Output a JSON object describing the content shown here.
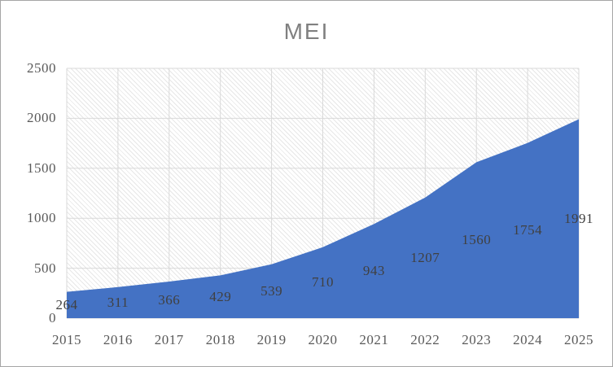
{
  "chart_data": {
    "type": "area",
    "title": "MEI",
    "series_name": "MEI",
    "categories": [
      "2015",
      "2016",
      "2017",
      "2018",
      "2019",
      "2020",
      "2021",
      "2022",
      "2023",
      "2024",
      "2025"
    ],
    "values": [
      264,
      311,
      366,
      429,
      539,
      710,
      943,
      1207,
      1560,
      1754,
      1991
    ],
    "yticks": [
      0,
      500,
      1000,
      1500,
      2000,
      2500
    ],
    "ylim": [
      0,
      2500
    ],
    "xlabel": "",
    "ylabel": "",
    "grid": true,
    "legend": false,
    "data_labels_visible": true,
    "colors": {
      "area": "#4472C4",
      "gridline": "#D9D9D9",
      "axis_label": "#595959",
      "data_label": "#404040",
      "title": "#808080",
      "plot_hatch": "#e7e7e7",
      "border": "#a6a6a6"
    }
  }
}
